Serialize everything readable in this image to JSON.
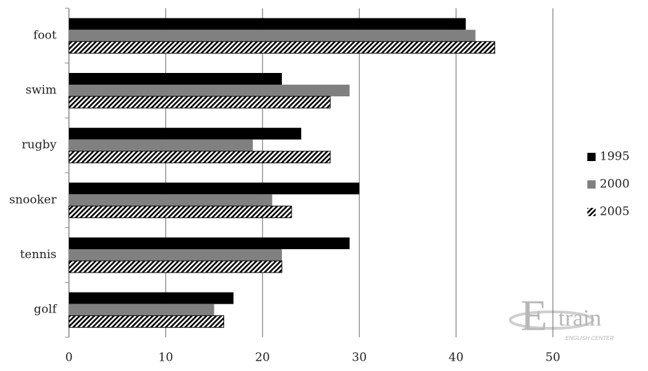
{
  "chart_data": {
    "type": "hbar",
    "categories": [
      "foot",
      "swim",
      "rugby",
      "snooker",
      "tennis",
      "golf"
    ],
    "series": [
      {
        "name": "1995",
        "color": "#000000",
        "values": [
          41,
          22,
          24,
          30,
          29,
          17
        ]
      },
      {
        "name": "2000",
        "color": "#808080",
        "values": [
          42,
          29,
          19,
          21,
          22,
          15
        ]
      },
      {
        "name": "2005",
        "color": "#000000",
        "hatch": true,
        "values": [
          44,
          27,
          27,
          23,
          22,
          16
        ]
      }
    ],
    "xlim": [
      0,
      50
    ],
    "xticks": [
      0,
      10,
      20,
      30,
      40,
      50
    ],
    "grid": true,
    "legend": "right"
  },
  "watermark": {
    "letter": "E",
    "text": "train",
    "subtitle": "ENGLISH CENTER"
  }
}
